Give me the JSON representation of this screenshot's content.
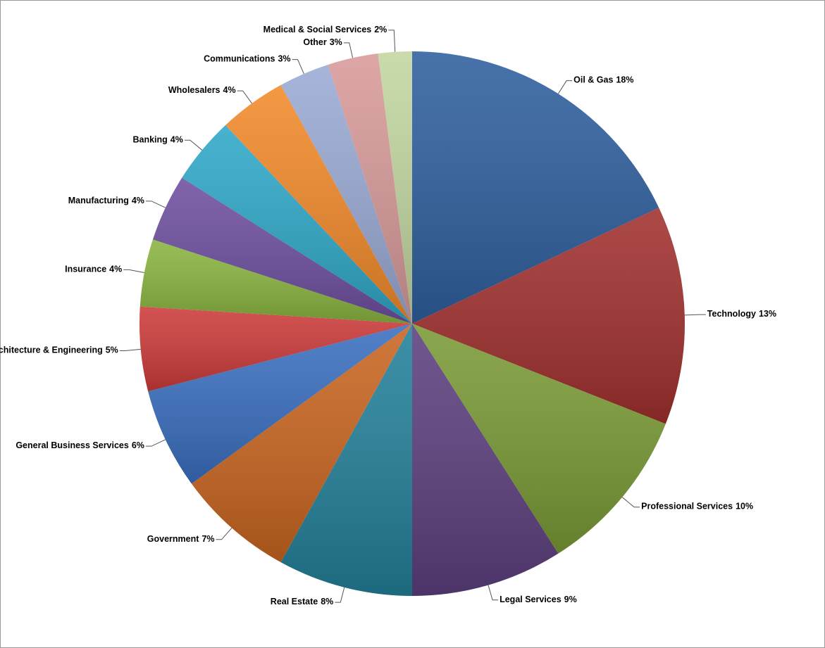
{
  "chart_data": {
    "type": "pie",
    "categories": [
      "Oil & Gas",
      "Technology",
      "Professional Services",
      "Legal Services",
      "Real Estate",
      "Government",
      "General Business Services",
      "Architecture & Engineering",
      "Insurance",
      "Manufacturing",
      "Banking",
      "Wholesalers",
      "Communications",
      "Other",
      "Medical & Social Services"
    ],
    "values": [
      18,
      13,
      10,
      9,
      8,
      7,
      6,
      5,
      4,
      4,
      4,
      4,
      3,
      3,
      2
    ],
    "value_labels": [
      "18%",
      "13%",
      "10%",
      "9%",
      "8%",
      "7%",
      "6%",
      "5%",
      "4%",
      "4%",
      "4%",
      "4%",
      "3%",
      "3%",
      "2%"
    ],
    "colors": [
      "#2e5f9e",
      "#a0302e",
      "#7a9a35",
      "#5c3f7e",
      "#23809a",
      "#c96520",
      "#3a6fc0",
      "#cc3b3a",
      "#8ab440",
      "#6e4fa0",
      "#2fa8c8",
      "#f28a2a",
      "#9aaad4",
      "#d89a9a",
      "#c2d6a0"
    ]
  }
}
